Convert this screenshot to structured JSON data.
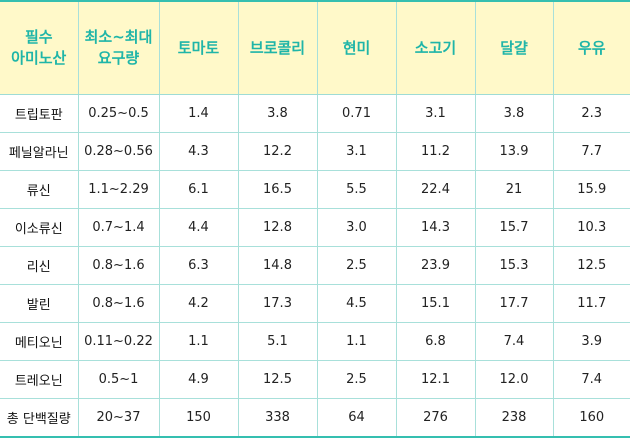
{
  "header": {
    "label_line1": "필수",
    "label_line2": "아미노산",
    "req_line1": "최소~최대",
    "req_line2": "요구량",
    "foods": [
      "토마토",
      "브로콜리",
      "현미",
      "소고기",
      "달걀",
      "우유"
    ]
  },
  "rows": [
    {
      "name": "트립토판",
      "req": "0.25~0.5",
      "values": [
        "1.4",
        "3.8",
        "0.71",
        "3.1",
        "3.8",
        "2.3"
      ]
    },
    {
      "name": "페닐알라닌",
      "req": "0.28~0.56",
      "values": [
        "4.3",
        "12.2",
        "3.1",
        "11.2",
        "13.9",
        "7.7"
      ]
    },
    {
      "name": "류신",
      "req": "1.1~2.29",
      "values": [
        "6.1",
        "16.5",
        "5.5",
        "22.4",
        "21",
        "15.9"
      ]
    },
    {
      "name": "이소류신",
      "req": "0.7~1.4",
      "values": [
        "4.4",
        "12.8",
        "3.0",
        "14.3",
        "15.7",
        "10.3"
      ]
    },
    {
      "name": "리신",
      "req": "0.8~1.6",
      "values": [
        "6.3",
        "14.8",
        "2.5",
        "23.9",
        "15.3",
        "12.5"
      ]
    },
    {
      "name": "발린",
      "req": "0.8~1.6",
      "values": [
        "4.2",
        "17.3",
        "4.5",
        "15.1",
        "17.7",
        "11.7"
      ]
    },
    {
      "name": "메티오닌",
      "req": "0.11~0.22",
      "values": [
        "1.1",
        "5.1",
        "1.1",
        "6.8",
        "7.4",
        "3.9"
      ]
    },
    {
      "name": "트레오닌",
      "req": "0.5~1",
      "values": [
        "4.9",
        "12.5",
        "2.5",
        "12.1",
        "12.0",
        "7.4"
      ]
    },
    {
      "name": "총 단백질량",
      "req": "20~37",
      "values": [
        "150",
        "338",
        "64",
        "276",
        "238",
        "160"
      ]
    }
  ],
  "colors": {
    "header_bg": "#fff9c9",
    "header_text": "#1fb5a8",
    "rule": "#35bfb0",
    "grid": "#a8e0da"
  }
}
